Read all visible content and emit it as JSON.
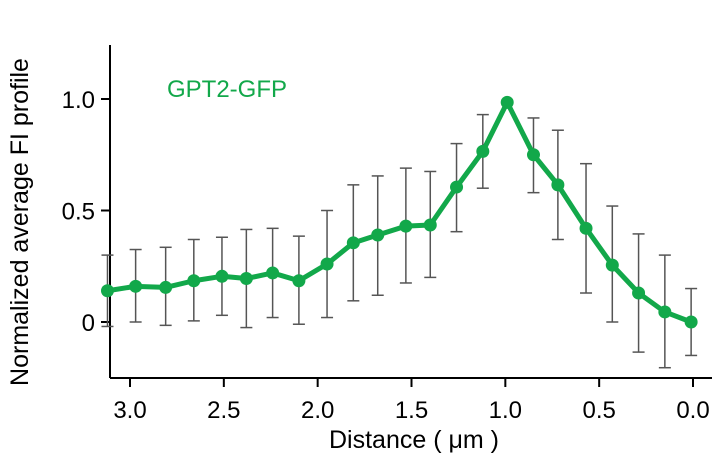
{
  "chart_data": {
    "type": "line",
    "title": "",
    "xlabel": "Distance ( μm )",
    "ylabel": "Normalized average FI profile",
    "xlim": [
      3.15,
      -0.05
    ],
    "ylim": [
      -0.25,
      1.2
    ],
    "x_ticks": [
      3.0,
      2.5,
      2.0,
      1.5,
      1.0,
      0.5,
      0.0
    ],
    "x_tick_labels": [
      "3.0",
      "2.5",
      "2.0",
      "1.5",
      "1.0",
      "0.5",
      "0.0"
    ],
    "y_ticks": [
      0,
      0.5,
      1.0
    ],
    "y_tick_labels": [
      "0",
      "0.5",
      "1.0"
    ],
    "grid": false,
    "legend_position": "top-left",
    "series": [
      {
        "name": "GPT2-GFP",
        "color": "#12a84a",
        "x": [
          3.12,
          2.97,
          2.81,
          2.66,
          2.51,
          2.38,
          2.24,
          2.1,
          1.95,
          1.81,
          1.68,
          1.53,
          1.4,
          1.26,
          1.12,
          0.99,
          0.85,
          0.72,
          0.57,
          0.43,
          0.29,
          0.15,
          0.01
        ],
        "values": [
          0.14,
          0.16,
          0.155,
          0.185,
          0.205,
          0.195,
          0.22,
          0.185,
          0.26,
          0.355,
          0.39,
          0.43,
          0.435,
          0.605,
          0.765,
          0.985,
          0.75,
          0.615,
          0.42,
          0.255,
          0.13,
          0.045,
          0.0
        ],
        "err_low": [
          -0.02,
          0.0,
          -0.015,
          0.005,
          0.03,
          -0.025,
          0.02,
          -0.01,
          0.02,
          0.095,
          0.12,
          0.175,
          0.2,
          0.405,
          0.6,
          0.985,
          0.58,
          0.37,
          0.13,
          0.0,
          -0.135,
          -0.205,
          -0.15
        ],
        "err_high": [
          0.3,
          0.325,
          0.335,
          0.37,
          0.38,
          0.415,
          0.42,
          0.385,
          0.5,
          0.615,
          0.655,
          0.69,
          0.675,
          0.8,
          0.93,
          0.985,
          0.915,
          0.86,
          0.71,
          0.52,
          0.395,
          0.3,
          0.15
        ]
      }
    ]
  }
}
